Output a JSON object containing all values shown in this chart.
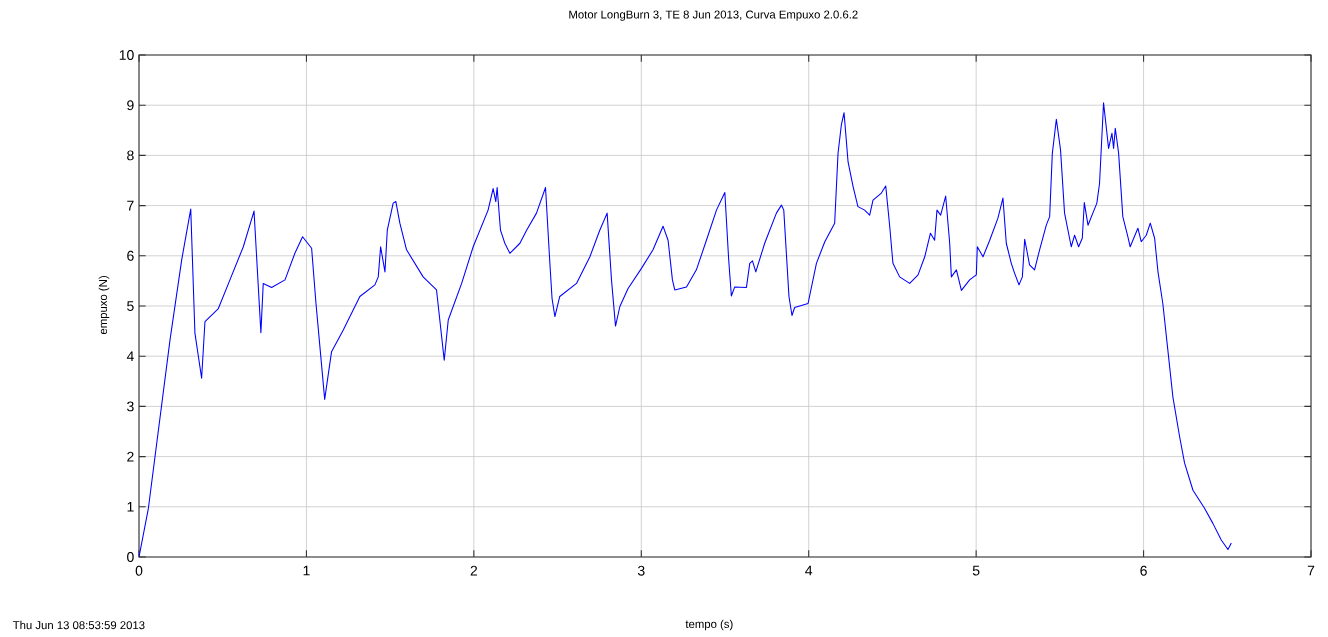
{
  "chart_data": {
    "type": "line",
    "title": "Motor LongBurn 3, TE 8 Jun 2013, Curva Empuxo 2.0.6.2",
    "xlabel": "tempo (s)",
    "ylabel": "empuxo (N)",
    "annotations": [
      "Thu Jun 13 08:53:59 2013"
    ],
    "xlim": [
      0,
      7
    ],
    "ylim": [
      0,
      10
    ],
    "xticks": [
      0,
      1,
      2,
      3,
      4,
      5,
      6,
      7
    ],
    "yticks": [
      0,
      1,
      2,
      3,
      4,
      5,
      6,
      7,
      8,
      9,
      10
    ],
    "grid": true,
    "series": [
      {
        "color": "#0000ff",
        "x": [
          0,
          0.056,
          0.185,
          0.255,
          0.309,
          0.334,
          0.374,
          0.394,
          0.474,
          0.543,
          0.623,
          0.687,
          0.728,
          0.742,
          0.792,
          0.872,
          0.931,
          0.977,
          1.031,
          1.057,
          1.109,
          1.15,
          1.22,
          1.319,
          1.409,
          1.429,
          1.443,
          1.469,
          1.483,
          1.518,
          1.534,
          1.558,
          1.598,
          1.697,
          1.777,
          1.823,
          1.847,
          1.927,
          1.996,
          2.085,
          2.115,
          2.131,
          2.139,
          2.159,
          2.185,
          2.215,
          2.275,
          2.315,
          2.374,
          2.428,
          2.454,
          2.467,
          2.484,
          2.513,
          2.613,
          2.693,
          2.752,
          2.796,
          2.822,
          2.846,
          2.872,
          2.921,
          3.001,
          3.07,
          3.13,
          3.16,
          3.186,
          3.2,
          3.27,
          3.329,
          3.389,
          3.449,
          3.499,
          3.522,
          3.538,
          3.558,
          3.628,
          3.648,
          3.664,
          3.684,
          3.737,
          3.807,
          3.837,
          3.851,
          3.882,
          3.9,
          3.916,
          3.996,
          4.046,
          4.096,
          4.155,
          4.175,
          4.195,
          4.211,
          4.235,
          4.265,
          4.294,
          4.334,
          4.364,
          4.384,
          4.434,
          4.46,
          4.484,
          4.503,
          4.543,
          4.603,
          4.653,
          4.693,
          4.727,
          4.752,
          4.766,
          4.788,
          4.818,
          4.842,
          4.852,
          4.882,
          4.912,
          4.961,
          5.001,
          5.007,
          5.041,
          5.081,
          5.13,
          5.16,
          5.18,
          5.21,
          5.23,
          5.256,
          5.276,
          5.29,
          5.319,
          5.349,
          5.379,
          5.419,
          5.439,
          5.455,
          5.479,
          5.504,
          5.528,
          5.568,
          5.588,
          5.612,
          5.634,
          5.646,
          5.668,
          5.697,
          5.721,
          5.737,
          5.761,
          5.791,
          5.811,
          5.821,
          5.831,
          5.851,
          5.876,
          5.906,
          5.92,
          5.966,
          5.986,
          6.016,
          6.04,
          6.066,
          6.086,
          6.115,
          6.145,
          6.175,
          6.215,
          6.245,
          6.295,
          6.364,
          6.414,
          6.464,
          6.504,
          6.524
        ],
        "values": [
          0,
          0.97,
          4.32,
          5.92,
          6.93,
          4.46,
          3.56,
          4.69,
          4.95,
          5.52,
          6.18,
          6.89,
          4.47,
          5.45,
          5.37,
          5.52,
          6.05,
          6.38,
          6.15,
          5.05,
          3.14,
          4.09,
          4.52,
          5.19,
          5.42,
          5.58,
          6.18,
          5.68,
          6.51,
          7.05,
          7.08,
          6.65,
          6.12,
          5.58,
          5.32,
          3.92,
          4.72,
          5.45,
          6.18,
          6.91,
          7.34,
          7.08,
          7.36,
          6.51,
          6.25,
          6.05,
          6.25,
          6.51,
          6.85,
          7.36,
          5.85,
          5.15,
          4.79,
          5.19,
          5.45,
          5.98,
          6.51,
          6.85,
          5.52,
          4.6,
          4.99,
          5.35,
          5.75,
          6.12,
          6.59,
          6.31,
          5.52,
          5.32,
          5.38,
          5.72,
          6.31,
          6.91,
          7.26,
          5.92,
          5.2,
          5.38,
          5.37,
          5.85,
          5.9,
          5.68,
          6.25,
          6.85,
          7.01,
          6.91,
          5.19,
          4.81,
          4.97,
          5.05,
          5.85,
          6.28,
          6.65,
          8.04,
          8.61,
          8.85,
          7.87,
          7.38,
          6.98,
          6.91,
          6.81,
          7.11,
          7.25,
          7.39,
          6.58,
          5.85,
          5.58,
          5.45,
          5.62,
          5.98,
          6.45,
          6.31,
          6.91,
          6.81,
          7.19,
          6.25,
          5.58,
          5.72,
          5.31,
          5.52,
          5.62,
          6.18,
          5.98,
          6.31,
          6.75,
          7.15,
          6.25,
          5.85,
          5.65,
          5.42,
          5.58,
          6.33,
          5.82,
          5.72,
          6.12,
          6.61,
          6.78,
          8.04,
          8.72,
          8.11,
          6.85,
          6.18,
          6.41,
          6.18,
          6.35,
          7.06,
          6.61,
          6.85,
          7.05,
          7.44,
          9.05,
          8.14,
          8.44,
          8.14,
          8.54,
          8.04,
          6.78,
          6.38,
          6.18,
          6.55,
          6.28,
          6.41,
          6.65,
          6.35,
          5.68,
          5.05,
          4.12,
          3.19,
          2.4,
          1.87,
          1.33,
          0.97,
          0.67,
          0.34,
          0.15,
          0.28
        ]
      }
    ]
  }
}
